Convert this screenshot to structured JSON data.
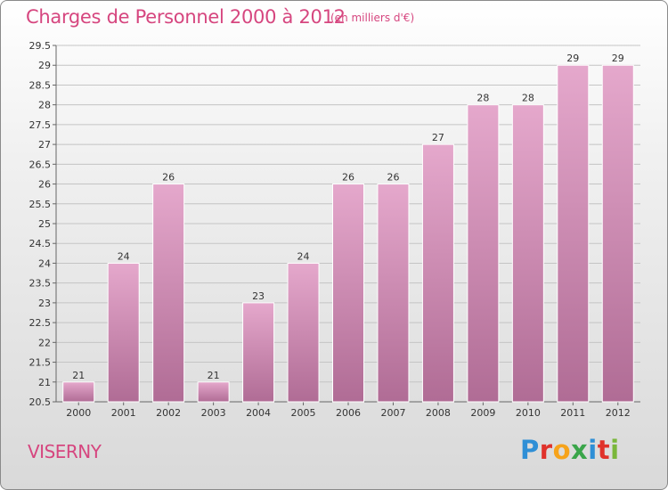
{
  "title": "Charges de Personnel 2000 à 2012",
  "subtitle": "(en milliers d'€)",
  "location": "VISERNY",
  "logo": {
    "letters": [
      "P",
      "r",
      "o",
      "x",
      "i",
      "t",
      "i"
    ],
    "colors": [
      "#2f8fd6",
      "#e0322b",
      "#f6a31b",
      "#3aa54a",
      "#2f8fd6",
      "#e0322b",
      "#7ab73b"
    ]
  },
  "colors": {
    "bar_top": "#e5a8cc",
    "bar_bottom": "#b06c95",
    "text_accent": "#d6467f"
  },
  "chart_data": {
    "type": "bar",
    "title": "Charges de Personnel 2000 à 2012",
    "subtitle": "(en milliers d'€)",
    "categories": [
      "2000",
      "2001",
      "2002",
      "2003",
      "2004",
      "2005",
      "2006",
      "2007",
      "2008",
      "2009",
      "2010",
      "2011",
      "2012"
    ],
    "values": [
      21,
      24,
      26,
      21,
      23,
      24,
      26,
      26,
      27,
      28,
      28,
      29,
      29
    ],
    "data_labels": [
      "21",
      "24",
      "26",
      "21",
      "23",
      "24",
      "26",
      "26",
      "27",
      "28",
      "28",
      "29",
      "29"
    ],
    "ylim": [
      20.5,
      29.5
    ],
    "yticks": [
      "20.5",
      "21",
      "21.5",
      "22",
      "22.5",
      "23",
      "23.5",
      "24",
      "24.5",
      "25",
      "25.5",
      "26",
      "26.5",
      "27",
      "27.5",
      "28",
      "28.5",
      "29",
      "29.5"
    ],
    "grid": true,
    "legend": "none"
  }
}
